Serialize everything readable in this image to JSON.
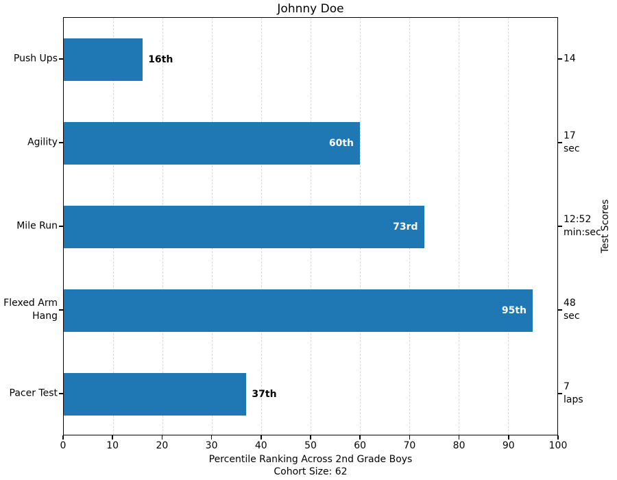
{
  "chart_data": {
    "type": "bar",
    "orientation": "horizontal",
    "title": "Johnny Doe",
    "xlabel": "Percentile Ranking Across 2nd Grade Boys",
    "xlabel_sub": "Cohort Size: 62",
    "right_axis_label": "Test Scores",
    "xlim": [
      0,
      100
    ],
    "xticks": [
      0,
      10,
      20,
      30,
      40,
      50,
      60,
      70,
      80,
      90,
      100
    ],
    "grid": "vertical-dashed",
    "legend": "none",
    "categories": [
      "Push Ups",
      "Agility",
      "Mile Run",
      "Flexed Arm Hang",
      "Pacer Test"
    ],
    "values": [
      16,
      60,
      73,
      95,
      37
    ],
    "rows": [
      {
        "category_lines": [
          "Push Ups"
        ],
        "percentile": 16,
        "percentile_label": "16th",
        "label_placement": "outside",
        "score_lines": [
          "14"
        ]
      },
      {
        "category_lines": [
          "Agility"
        ],
        "percentile": 60,
        "percentile_label": "60th",
        "label_placement": "inside",
        "score_lines": [
          "17",
          "sec"
        ]
      },
      {
        "category_lines": [
          "Mile Run"
        ],
        "percentile": 73,
        "percentile_label": "73rd",
        "label_placement": "inside",
        "score_lines": [
          "12:52",
          "min:sec"
        ]
      },
      {
        "category_lines": [
          "Flexed Arm",
          "Hang"
        ],
        "percentile": 95,
        "percentile_label": "95th",
        "label_placement": "inside",
        "score_lines": [
          "48",
          "sec"
        ]
      },
      {
        "category_lines": [
          "Pacer Test"
        ],
        "percentile": 37,
        "percentile_label": "37th",
        "label_placement": "outside",
        "score_lines": [
          "7",
          "laps"
        ]
      }
    ],
    "colors": {
      "bar": "#1f77b4",
      "grid": "#d9d9d9",
      "axis": "#000000",
      "inside_label": "#ffffff",
      "outside_label": "#000000",
      "background": "#ffffff"
    }
  }
}
